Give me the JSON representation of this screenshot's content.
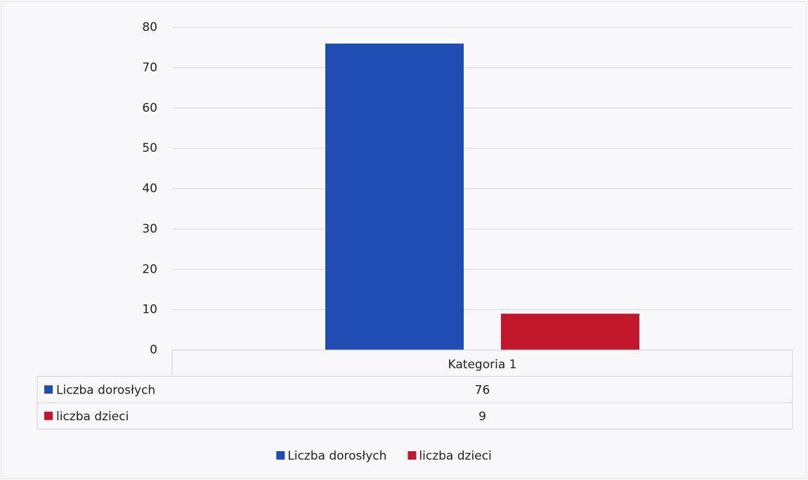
{
  "chart_data": {
    "type": "bar",
    "categories": [
      "Kategoria 1"
    ],
    "series": [
      {
        "name": "Liczba dorosłych",
        "color": "#1f4db3",
        "values": [
          76
        ]
      },
      {
        "name": "liczba dzieci",
        "color": "#c3172b",
        "values": [
          9
        ]
      }
    ],
    "ylim": [
      0,
      80
    ],
    "yticks": [
      0,
      10,
      20,
      30,
      40,
      50,
      60,
      70,
      80
    ],
    "grid": true,
    "data_table": true,
    "legend": "bottom"
  }
}
